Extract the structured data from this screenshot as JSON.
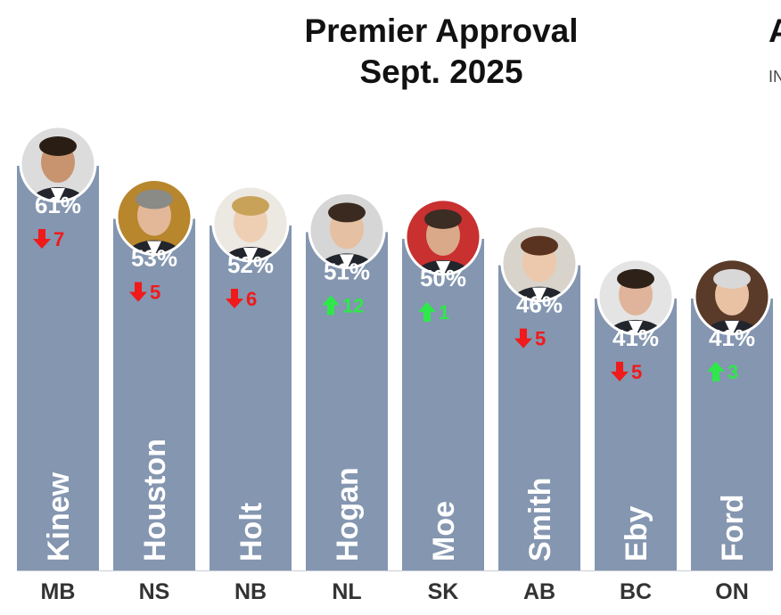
{
  "header": {
    "title_line1": "Premier Approval",
    "title_line2": "Sept. 2025",
    "clipped_title_letter": "A",
    "clipped_subtitle": "IN"
  },
  "colors": {
    "bar": "#8496B0",
    "up": "#2EE84A",
    "down": "#F01A1A",
    "label_text": "#ffffff",
    "axis_text": "#333333"
  },
  "chart_data": {
    "type": "bar",
    "title": "Premier Approval Sept. 2025",
    "categories": [
      "MB",
      "NS",
      "NB",
      "NL",
      "SK",
      "AB",
      "BC",
      "ON"
    ],
    "premiers": [
      "Kinew",
      "Houston",
      "Holt",
      "Hogan",
      "Moe",
      "Smith",
      "Eby",
      "Ford"
    ],
    "values": [
      61,
      53,
      52,
      51,
      50,
      46,
      41,
      41
    ],
    "value_labels": [
      "61%",
      "53%",
      "52%",
      "51%",
      "50%",
      "46%",
      "41%",
      "41%"
    ],
    "change_direction": [
      "down",
      "down",
      "down",
      "up",
      "up",
      "down",
      "down",
      "up"
    ],
    "change_values": [
      "7",
      "5",
      "6",
      "12",
      "1",
      "5",
      "5",
      "3"
    ],
    "icons": [
      "portrait-kinew-icon",
      "portrait-houston-icon",
      "portrait-holt-icon",
      "portrait-hogan-icon",
      "portrait-moe-icon",
      "portrait-smith-icon",
      "portrait-eby-icon",
      "portrait-ford-icon"
    ],
    "ylim": [
      0,
      61
    ],
    "grid": false,
    "legend": "none"
  }
}
